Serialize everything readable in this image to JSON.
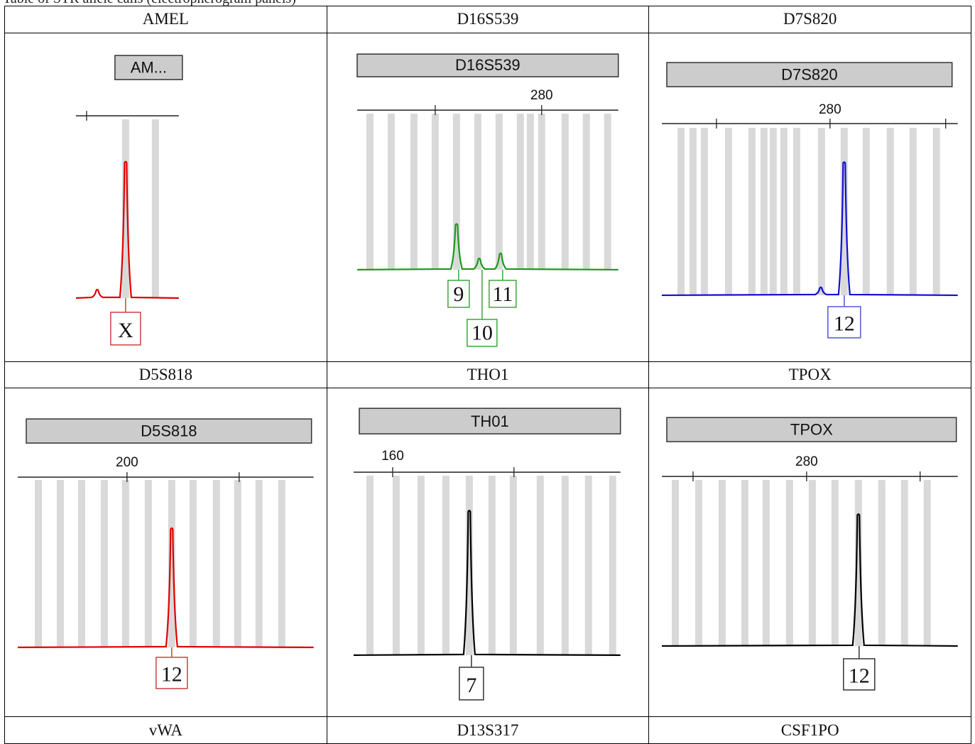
{
  "caption": "Table of STR allele calls (electropherogram panels)",
  "rows": [
    {
      "labels": [
        "AMEL",
        "D16S539",
        "D7S820"
      ],
      "panels": [
        {
          "title": "AM...",
          "color": "#e00000",
          "ticks": [
            {
              "label": ""
            }
          ],
          "alleles": [
            "X"
          ],
          "chart_ref": 0
        },
        {
          "title": "D16S539",
          "color": "#1a9a1a",
          "ticks": [
            {
              "label": ""
            },
            {
              "label": "280"
            }
          ],
          "alleles": [
            "9",
            "10",
            "11"
          ],
          "chart_ref": 1
        },
        {
          "title": "D7S820",
          "color": "#1010d0",
          "ticks": [
            {
              "label": ""
            },
            {
              "label": "280"
            },
            {
              "label": ""
            }
          ],
          "alleles": [
            "12"
          ],
          "chart_ref": 2
        }
      ]
    },
    {
      "labels": [
        "D5S818",
        "THO1",
        "TPOX"
      ],
      "panels": [
        {
          "title": "D5S818",
          "color": "#e00000",
          "ticks": [
            {
              "label": "200"
            },
            {
              "label": ""
            }
          ],
          "alleles": [
            "12"
          ],
          "chart_ref": 3
        },
        {
          "title": "TH01",
          "color": "#000000",
          "ticks": [
            {
              "label": "160"
            },
            {
              "label": ""
            }
          ],
          "alleles": [
            "7"
          ],
          "chart_ref": 4
        },
        {
          "title": "TPOX",
          "color": "#000000",
          "ticks": [
            {
              "label": ""
            },
            {
              "label": "280"
            },
            {
              "label": ""
            }
          ],
          "alleles": [
            "12"
          ],
          "chart_ref": 5
        }
      ]
    },
    {
      "labels": [
        "vWA",
        "D13S317",
        "CSF1PO"
      ]
    }
  ],
  "chart_data": [
    {
      "type": "line",
      "title": "AM...",
      "series": [
        {
          "values": [
            0.05,
            0.9
          ]
        }
      ],
      "allele_labels": [
        "X"
      ]
    },
    {
      "type": "line",
      "title": "D16S539",
      "series": [
        {
          "values": [
            0.35,
            0.08,
            0.12
          ]
        }
      ],
      "allele_labels": [
        "9",
        "10",
        "11"
      ]
    },
    {
      "type": "line",
      "title": "D7S820",
      "series": [
        {
          "values": [
            0.05,
            0.95
          ]
        }
      ],
      "allele_labels": [
        "12"
      ]
    },
    {
      "type": "line",
      "title": "D5S818",
      "series": [
        {
          "values": [
            0.85
          ]
        }
      ],
      "allele_labels": [
        "12"
      ]
    },
    {
      "type": "line",
      "title": "TH01",
      "series": [
        {
          "values": [
            0.95
          ]
        }
      ],
      "allele_labels": [
        "7"
      ]
    },
    {
      "type": "line",
      "title": "TPOX",
      "series": [
        {
          "values": [
            0.95
          ]
        }
      ],
      "allele_labels": [
        "12"
      ]
    }
  ]
}
